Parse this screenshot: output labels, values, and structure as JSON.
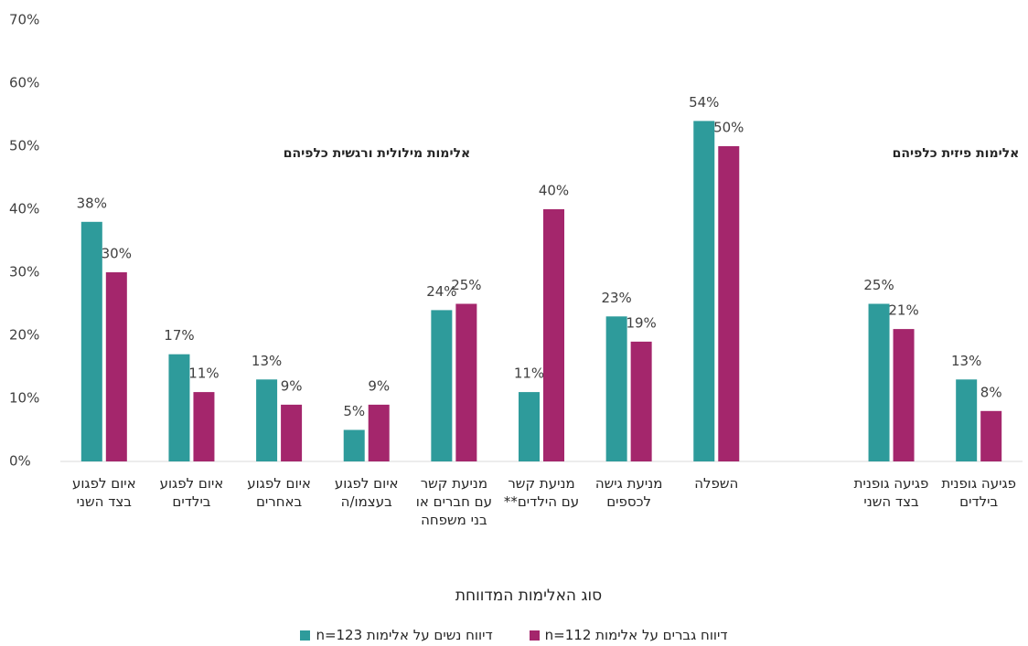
{
  "chart_data": {
    "type": "bar",
    "categories": [
      "איום לפגוע בצד השני",
      "איום לפגוע בילדים",
      "איום לפגוע באחרים",
      "איום לפגוע בעצמו/ה",
      "מניעת קשר עם חברים או בני משפחה",
      "מניעת קשר עם הילדים**",
      "מניעת גישה לכספים",
      "השפלה",
      null,
      "פגיעה גופנית בצד השני",
      "פגיעה גופנית בילדים"
    ],
    "series": [
      {
        "name": "דיווח נשים על אלימות n=123",
        "color": "#2e9b9b",
        "values": [
          38,
          17,
          13,
          5,
          24,
          11,
          23,
          54,
          null,
          25,
          13
        ],
        "value_labels": [
          "38%",
          "17%",
          "13%",
          "5%",
          "24%",
          "11%",
          "23%",
          "54%",
          null,
          "25%",
          "13%"
        ]
      },
      {
        "name": "דיווח גברים על אלימות n=112",
        "color": "#a4266c",
        "values": [
          30,
          11,
          9,
          9,
          25,
          40,
          19,
          50,
          null,
          21,
          8
        ],
        "value_labels": [
          "30%",
          "11%",
          "9%",
          "9%",
          "25%",
          "40%",
          "19%",
          "50%",
          null,
          "21%",
          "8%"
        ]
      }
    ],
    "xlabel": "סוג האלימות המדווחת",
    "annotations": [
      "אלימות מילולית ורגשית כלפיהם",
      "אלימות פיזית כלפיהם"
    ],
    "ylim": [
      0,
      70
    ],
    "yticks": [
      {
        "value": 0,
        "label": "0%"
      },
      {
        "value": 10,
        "label": "10%"
      },
      {
        "value": 20,
        "label": "20%"
      },
      {
        "value": 30,
        "label": "30%"
      },
      {
        "value": 40,
        "label": "40%"
      },
      {
        "value": 50,
        "label": "50%"
      },
      {
        "value": 60,
        "label": "60%"
      },
      {
        "value": 70,
        "label": "70%"
      }
    ],
    "grid": false
  }
}
